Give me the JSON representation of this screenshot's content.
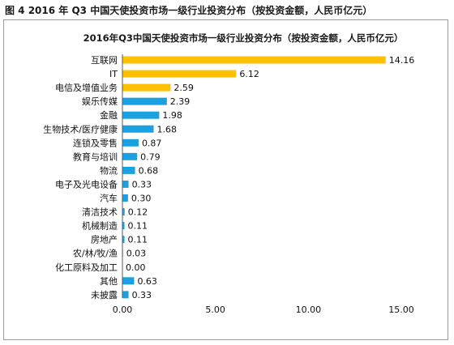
{
  "figure": {
    "caption": "图 4 2016 年 Q3 中国天使投资市场一级行业投资分布（按投资金额，人民币亿元）"
  },
  "colors": {
    "highlight": "#FFC000",
    "normal": "#1BA1E2",
    "axis": "#595959"
  },
  "chart_data": {
    "type": "bar",
    "orientation": "horizontal",
    "title": "2016年Q3中国天使投资市场一级行业投资分布（按投资金额，人民币亿元）",
    "categories": [
      "互联网",
      "IT",
      "电信及增值业务",
      "娱乐传媒",
      "金融",
      "生物技术/医疗健康",
      "连锁及零售",
      "教育与培训",
      "物流",
      "电子及光电设备",
      "汽车",
      "清洁技术",
      "机械制造",
      "房地产",
      "农/林/牧/渔",
      "化工原料及加工",
      "其他",
      "未披露"
    ],
    "values": [
      14.16,
      6.12,
      2.59,
      2.39,
      1.98,
      1.68,
      0.87,
      0.79,
      0.68,
      0.33,
      0.3,
      0.12,
      0.11,
      0.11,
      0.03,
      0.0,
      0.63,
      0.33
    ],
    "value_labels": [
      "14.16",
      "6.12",
      "2.59",
      "2.39",
      "1.98",
      "1.68",
      "0.87",
      "0.79",
      "0.68",
      "0.33",
      "0.30",
      "0.12",
      "0.11",
      "0.11",
      "0.03",
      "0.00",
      "0.63",
      "0.33"
    ],
    "highlight_top": 3,
    "xlim": [
      0,
      15
    ],
    "xticks": [
      0,
      5,
      10,
      15
    ],
    "xtick_labels": [
      "0.00",
      "5.00",
      "10.00",
      "15.00"
    ],
    "xlabel": "",
    "ylabel": "",
    "grid": false,
    "legend": "none"
  }
}
